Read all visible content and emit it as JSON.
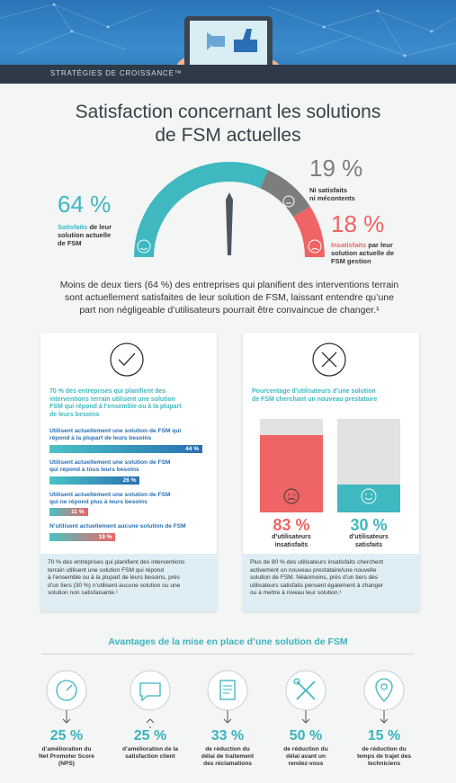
{
  "header": {
    "brand": "STRATÉGIES DE CROISSANCE™"
  },
  "title": {
    "line1": "Satisfaction concernant les solutions",
    "line2": "de FSM actuelles"
  },
  "gauge": {
    "satisfied": {
      "pct": "64 %",
      "label_strong": "Satisfaits",
      "label_rest": " de leur",
      "line2": "solution actuelle",
      "line3": "de FSM",
      "value": 64,
      "color": "#3fb8c0"
    },
    "neutral": {
      "pct": "19 %",
      "line1": "Ni satisfaits",
      "line2": "ni mécontents",
      "value": 19,
      "color": "#7d7d7d"
    },
    "dissatisfied": {
      "pct": "18 %",
      "label_strong": "Insatisfaits",
      "label_rest": " par leur",
      "line2": "solution actuelle de",
      "line3": "FSM gestion",
      "value": 18,
      "color": "#ef6464"
    }
  },
  "intro": {
    "line1": "Moins de deux tiers (64 %) des entreprises qui planifient des interventions terrain",
    "line2": "sont actuellement satisfaites de leur solution de FSM, laissant entendre qu’une",
    "line3": "part non négligeable d’utilisateurs pourrait être convaincue de changer.¹"
  },
  "left_card": {
    "heading": [
      "70 % des entreprises qui planifient des",
      "interventions terrain utilisent une solution",
      "FSM qui répond à l’ensemble ou à la plupart",
      "de leurs besoins"
    ],
    "bars": [
      {
        "label": [
          "Utilisent actuellement une solution de FSM qui",
          "répond à la plupart de leurs besoins"
        ],
        "value_label": "44 %",
        "value": 44,
        "color": "#2a6fb2"
      },
      {
        "label": [
          "Utilisent actuellement une solution de FSM",
          "qui répond à tous leurs besoins"
        ],
        "value_label": "26 %",
        "value": 26,
        "color": "#2a6fb2"
      },
      {
        "label": [
          "Utilisent actuellement une solution de FSM",
          "qui ne répond plus à leurs besoins"
        ],
        "value_label": "11 %",
        "value": 11,
        "color": "#ef6464"
      },
      {
        "label": [
          "N’utilisent actuellement aucune solution de FSM"
        ],
        "value_label": "19 %",
        "value": 19,
        "color": "#ef6464"
      }
    ],
    "footer": [
      "70 % des entreprises qui planifient des interventions",
      "terrain utilisent une solution FSM qui répond",
      "à l’ensemble ou à la plupart de leurs besoins, près",
      "d’un tiers (30 %) n’utilisent aucune solution ou une",
      "solution non satisfaisante.¹"
    ]
  },
  "right_card": {
    "heading": [
      "Pourcentage d’utilisateurs d’une solution",
      "de FSM cherchant un nouveau prestataire"
    ],
    "cols": [
      {
        "pct": "83 %",
        "caption": [
          "d’utilisateurs",
          "insatisfaits"
        ],
        "value": 83,
        "color": "#ef6464"
      },
      {
        "pct": "30 %",
        "caption": [
          "d’utilisateurs",
          "satisfaits"
        ],
        "value": 30,
        "color": "#3fb8c0"
      }
    ],
    "footer": [
      "Plus de 80 % des utilisateurs insatisfaits cherchent",
      "activement un nouveau prestataire/une nouvelle",
      "solution de FSM. Néanmoins, près d’un tiers des",
      "utilisateurs satisfaits pensent également à changer",
      "ou à mettre à niveau leur solution.¹"
    ]
  },
  "advantages": {
    "title": "Avantages de la mise en place d’une solution de FSM",
    "items": [
      {
        "icon": "gauge-icon",
        "pct": "25 %",
        "caption": [
          "d’amélioration du",
          "Net Promoter Score",
          "(NPS)"
        ]
      },
      {
        "icon": "chat-bubble-icon",
        "pct": "25 %",
        "caption": [
          "d’amélioration de la",
          "satisfaction client"
        ]
      },
      {
        "icon": "document-icon",
        "pct": "33 %",
        "caption": [
          "de réduction du",
          "délai de traitement",
          "des réclamations"
        ]
      },
      {
        "icon": "tools-icon",
        "pct": "50 %",
        "caption": [
          "de réduction du",
          "délai avant un",
          "rendez-vous"
        ]
      },
      {
        "icon": "map-pin-icon",
        "pct": "15 %",
        "caption": [
          "de réduction du",
          "temps de trajet des",
          "techniciens"
        ]
      }
    ]
  }
}
